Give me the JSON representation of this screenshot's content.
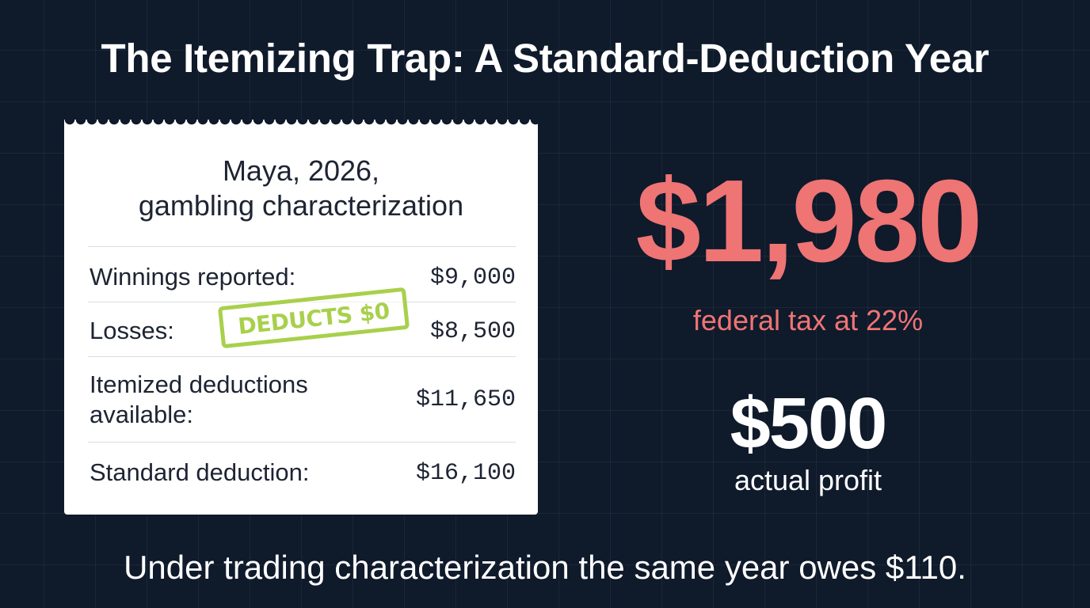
{
  "title": "The Itemizing Trap: A Standard-Deduction Year",
  "receipt": {
    "title_line1": "Maya, 2026,",
    "title_line2": "gambling characterization",
    "rows": [
      {
        "label": "Winnings reported:",
        "value": "$9,000"
      },
      {
        "label": "Losses:",
        "value": "$8,500"
      },
      {
        "label_line1": "Itemized deductions",
        "label_line2": "available:",
        "value": "$11,650"
      },
      {
        "label": "Standard deduction:",
        "value": "$16,100"
      }
    ],
    "stamp": "DEDUCTS $0"
  },
  "tax": {
    "amount": "$1,980",
    "caption": "federal tax at 22%"
  },
  "profit": {
    "amount": "$500",
    "caption": "actual profit"
  },
  "footer": "Under trading characterization the same year owes $110.",
  "colors": {
    "background": "#0f1a2b",
    "accent_red": "#ef7474",
    "stamp_green": "#a8d04c",
    "receipt": "#ffffff"
  }
}
